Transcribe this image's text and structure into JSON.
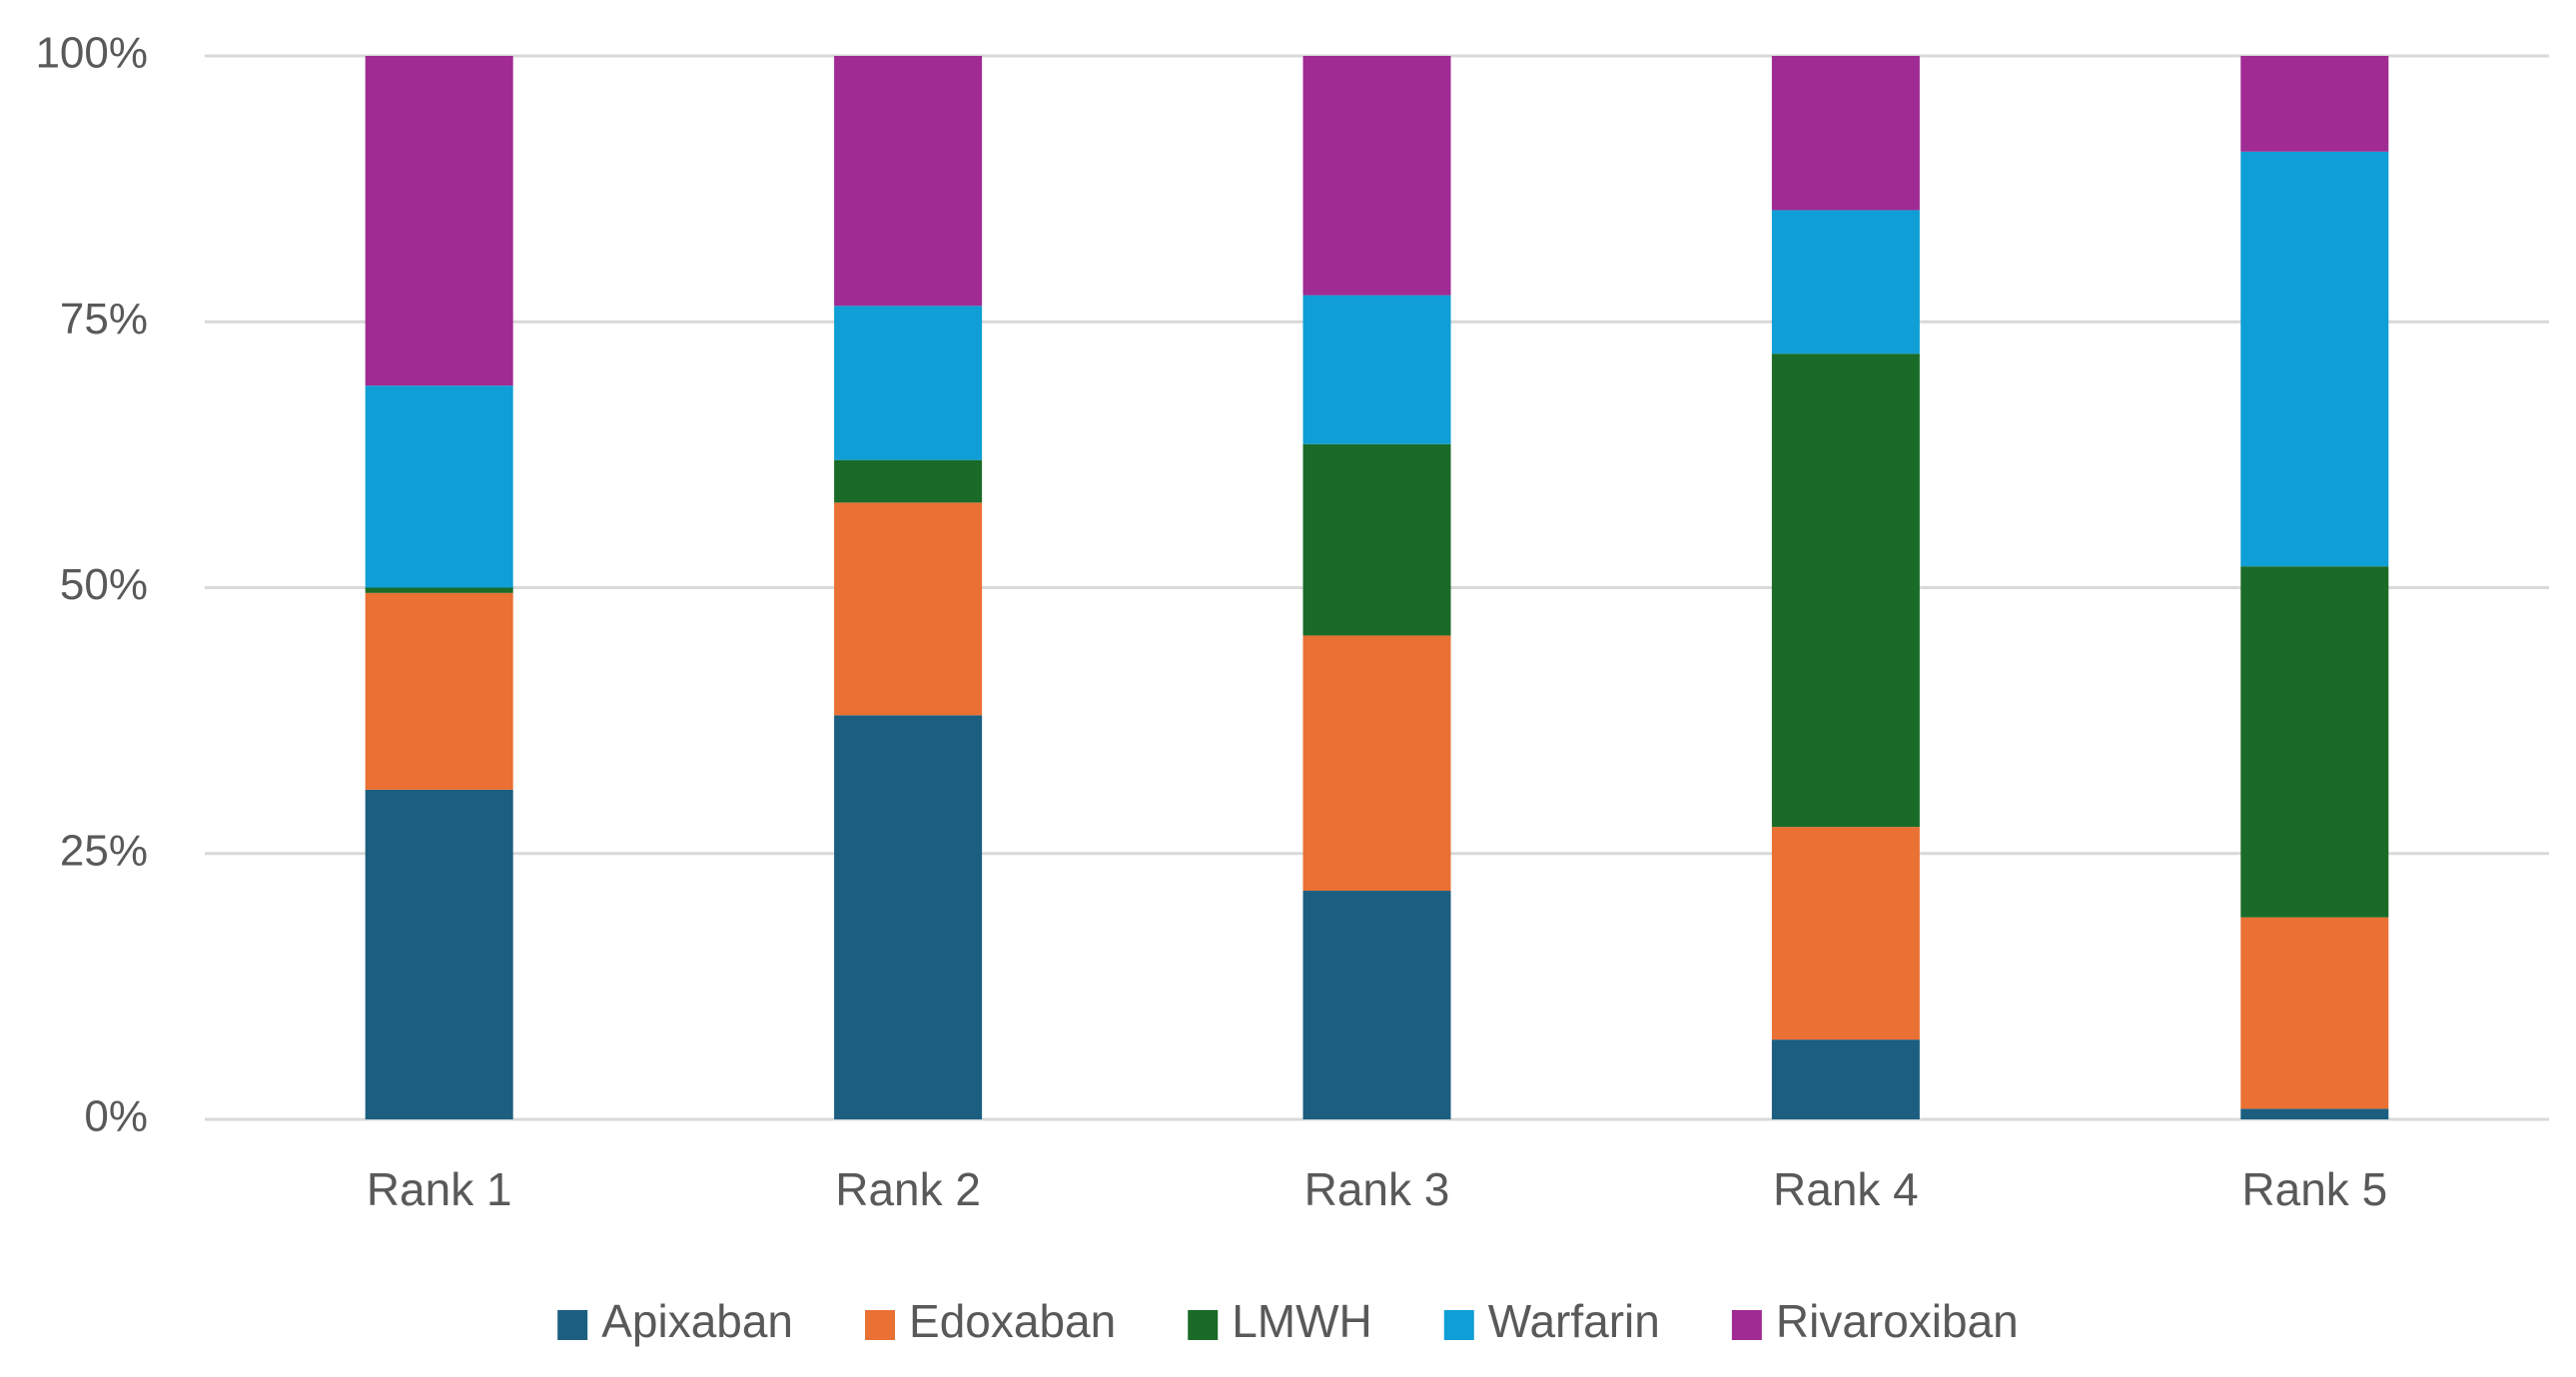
{
  "chart_data": {
    "type": "bar",
    "stacked": true,
    "percent": true,
    "title": "",
    "xlabel": "",
    "ylabel": "",
    "ylim": [
      0,
      100
    ],
    "yticks": [
      0,
      25,
      50,
      75,
      100
    ],
    "ytick_labels": [
      "0%",
      "25%",
      "50%",
      "75%",
      "100%"
    ],
    "grid": true,
    "legend": "bottom",
    "categories": [
      "Rank 1",
      "Rank 2",
      "Rank 3",
      "Rank 4",
      "Rank 5"
    ],
    "series": [
      {
        "name": "Apixaban",
        "color": "#1b5e80",
        "values": [
          31,
          38,
          21.5,
          7.5,
          1
        ]
      },
      {
        "name": "Edoxaban",
        "color": "#ea7033",
        "values": [
          18.5,
          20,
          24,
          20,
          18
        ]
      },
      {
        "name": "LMWH",
        "color": "#1a6b28",
        "values": [
          0.5,
          4,
          18,
          44.5,
          33
        ]
      },
      {
        "name": "Warfarin",
        "color": "#0f9ed5",
        "values": [
          19,
          14.5,
          14,
          13.5,
          39
        ]
      },
      {
        "name": "Rivaroxiban",
        "color": "#a02b93",
        "values": [
          31,
          23.5,
          22.5,
          14.5,
          9
        ]
      }
    ]
  }
}
